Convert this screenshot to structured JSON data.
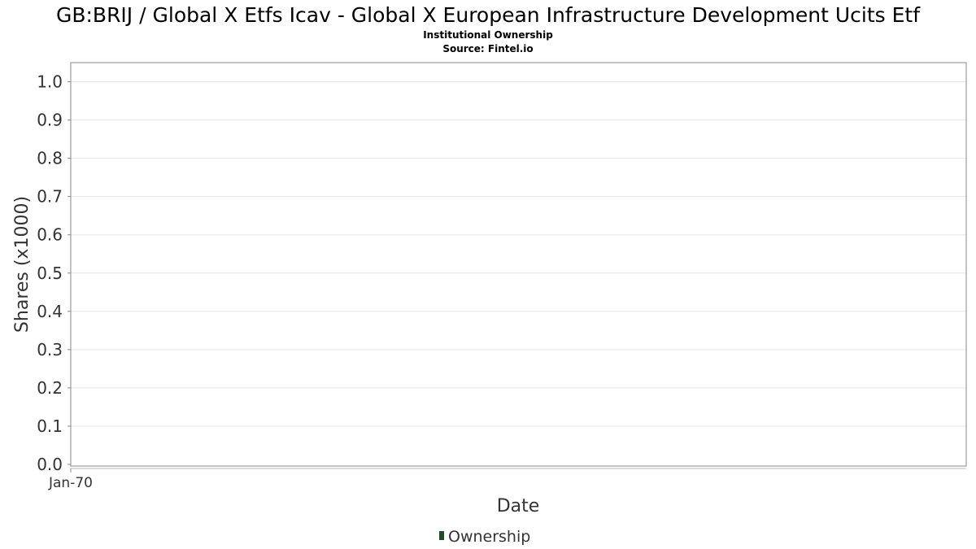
{
  "chart_data": {
    "type": "bar",
    "title": "GB:BRIJ / Global X Etfs Icav - Global X European Infrastructure Development Ucits Etf",
    "subtitle_lines": [
      "Institutional Ownership",
      "Source: Fintel.io"
    ],
    "xlabel": "Date",
    "ylabel": "Shares (x1000)",
    "x_ticks": [
      "Jan-70"
    ],
    "y_ticks": [
      "0.0",
      "0.1",
      "0.2",
      "0.3",
      "0.4",
      "0.5",
      "0.6",
      "0.7",
      "0.8",
      "0.9",
      "1.0"
    ],
    "ylim": [
      0,
      1.05
    ],
    "grid": true,
    "legend_position": "bottom-center",
    "series": [
      {
        "name": "Ownership",
        "color": "#1e4d2b",
        "x": [],
        "values": []
      }
    ]
  }
}
